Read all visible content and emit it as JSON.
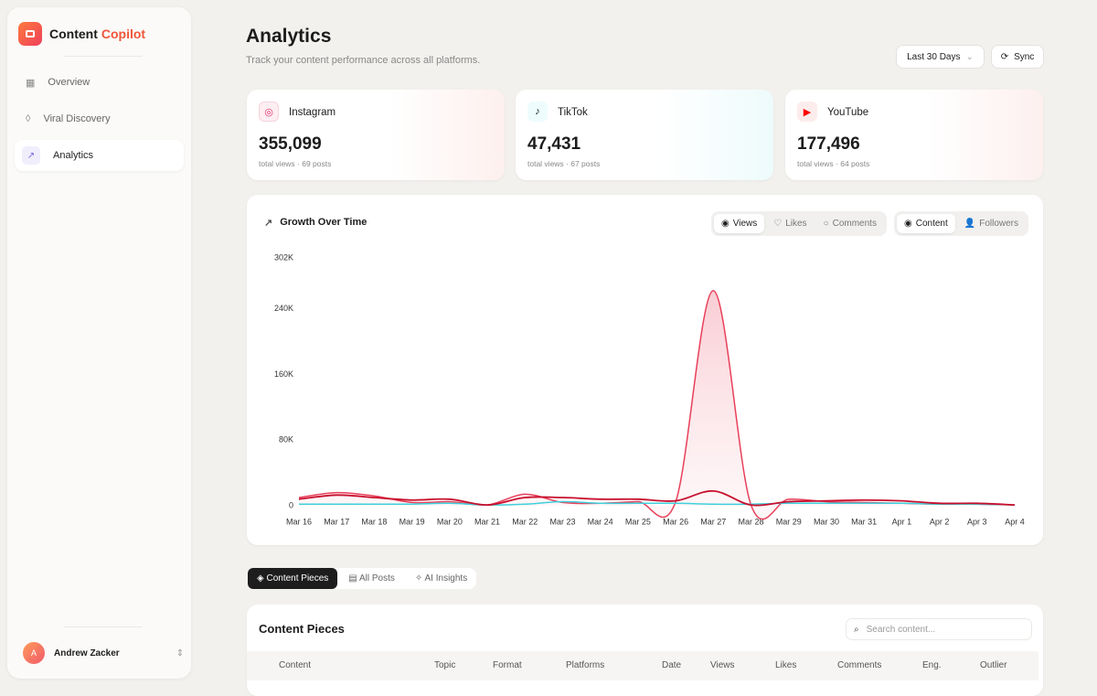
{
  "sidebar": {
    "brand_first": "Content",
    "brand_second": "Copilot",
    "nav": [
      "Overview",
      "Viral Discovery",
      "Analytics"
    ],
    "user": {
      "initial": "A",
      "name": "Andrew Zacker"
    }
  },
  "header": {
    "title": "Analytics",
    "subtitle": "Track your content performance across all platforms.",
    "range": "Last 30 Days",
    "sync": "Sync"
  },
  "cards": [
    {
      "platform": "Instagram",
      "total": "355,099",
      "caption": "total views · 69 posts"
    },
    {
      "platform": "TikTok",
      "total": "47,431",
      "caption": "total views · 67 posts"
    },
    {
      "platform": "YouTube",
      "total": "177,496",
      "caption": "total views · 64 posts"
    }
  ],
  "chart_panel": {
    "title": "Growth Over Time",
    "metrics": [
      "Views",
      "Likes",
      "Comments"
    ],
    "modes": [
      "Content",
      "Followers"
    ]
  },
  "chart_data": {
    "type": "line",
    "categories": [
      "Mar 16",
      "Mar 17",
      "Mar 18",
      "Mar 19",
      "Mar 20",
      "Mar 21",
      "Mar 22",
      "Mar 23",
      "Mar 24",
      "Mar 25",
      "Mar 26",
      "Mar 27",
      "Mar 28",
      "Mar 29",
      "Mar 30",
      "Mar 31",
      "Apr 1",
      "Apr 2",
      "Apr 3",
      "Apr 4"
    ],
    "series": [
      {
        "color": "#e8405a",
        "fill": true,
        "values": [
          10000,
          16000,
          12000,
          4000,
          5000,
          1000,
          14000,
          4000,
          3000,
          5000,
          5000,
          262000,
          1000,
          8000,
          5000,
          4000,
          3000,
          2000,
          2000,
          1000
        ]
      },
      {
        "color": "#3fd0dc",
        "fill": false,
        "values": [
          2000,
          2000,
          2000,
          2000,
          3000,
          1000,
          2000,
          5000,
          3000,
          3000,
          3000,
          2000,
          2000,
          3000,
          3000,
          3000,
          3000,
          2000,
          2000,
          1000
        ]
      },
      {
        "color": "#c8102e",
        "fill": false,
        "values": [
          8000,
          13000,
          10000,
          7000,
          8000,
          1000,
          10000,
          10000,
          8000,
          8000,
          6000,
          18000,
          1000,
          5000,
          6000,
          7000,
          6000,
          3000,
          3000,
          1000
        ]
      }
    ],
    "ylim": [
      0,
      302000
    ],
    "yticks": [
      0,
      {
        "value": 80000,
        "label": "80K"
      },
      {
        "value": 160000,
        "label": "160K"
      },
      {
        "value": 240000,
        "label": "240K"
      },
      {
        "value": 302000,
        "label": "302K"
      }
    ]
  },
  "tabs": [
    "Content Pieces",
    "All Posts",
    "AI Insights"
  ],
  "table": {
    "title": "Content Pieces",
    "search_placeholder": "Search content...",
    "columns": [
      "Content",
      "Topic",
      "Format",
      "Platforms",
      "Date",
      "Views",
      "Likes",
      "Comments",
      "Eng.",
      "Outlier"
    ]
  }
}
